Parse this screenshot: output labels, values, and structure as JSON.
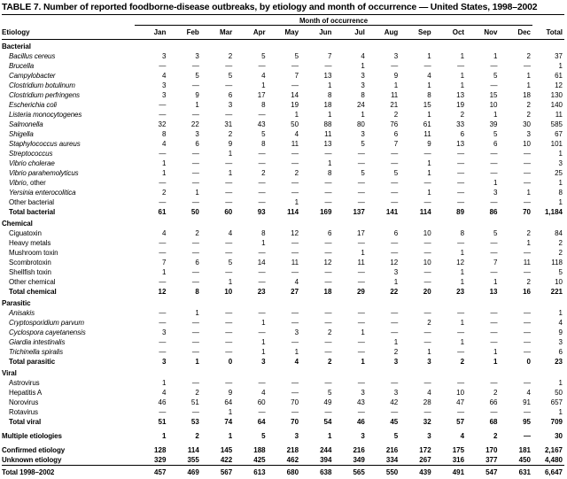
{
  "title": "TABLE 7. Number of reported foodborne-disease outbreaks, by etiology and month of occurrence — United States, 1998–2002",
  "table": {
    "group_header": "Month of occurrence",
    "etiology_header": "Etiology",
    "columns": [
      "Jan",
      "Feb",
      "Mar",
      "Apr",
      "May",
      "Jun",
      "Jul",
      "Aug",
      "Sep",
      "Oct",
      "Nov",
      "Dec",
      "Total"
    ],
    "rows": [
      {
        "type": "section",
        "label": "Bacterial"
      },
      {
        "type": "item",
        "italic": true,
        "label": "Bacillus cereus",
        "values": [
          "3",
          "3",
          "2",
          "5",
          "5",
          "7",
          "4",
          "3",
          "1",
          "1",
          "1",
          "2",
          "37"
        ]
      },
      {
        "type": "item",
        "italic": true,
        "label": "Brucella",
        "values": [
          "—",
          "—",
          "—",
          "—",
          "—",
          "—",
          "1",
          "—",
          "—",
          "—",
          "—",
          "—",
          "1"
        ]
      },
      {
        "type": "item",
        "italic": true,
        "label": "Campylobacter",
        "values": [
          "4",
          "5",
          "5",
          "4",
          "7",
          "13",
          "3",
          "9",
          "4",
          "1",
          "5",
          "1",
          "61"
        ]
      },
      {
        "type": "item",
        "italic": true,
        "label": "Clostridium botulinum",
        "values": [
          "3",
          "—",
          "—",
          "1",
          "—",
          "1",
          "3",
          "1",
          "1",
          "1",
          "—",
          "1",
          "12"
        ]
      },
      {
        "type": "item",
        "italic": true,
        "label": "Clostridium perfringens",
        "values": [
          "3",
          "9",
          "6",
          "17",
          "14",
          "8",
          "8",
          "11",
          "8",
          "13",
          "15",
          "18",
          "130"
        ]
      },
      {
        "type": "item",
        "italic": true,
        "label": "Escherichia coli",
        "values": [
          "—",
          "1",
          "3",
          "8",
          "19",
          "18",
          "24",
          "21",
          "15",
          "19",
          "10",
          "2",
          "140"
        ]
      },
      {
        "type": "item",
        "italic": true,
        "label": "Listeria monocytogenes",
        "values": [
          "—",
          "—",
          "—",
          "—",
          "1",
          "1",
          "1",
          "2",
          "1",
          "2",
          "1",
          "2",
          "11"
        ]
      },
      {
        "type": "item",
        "italic": true,
        "label": "Salmonella",
        "values": [
          "32",
          "22",
          "31",
          "43",
          "50",
          "88",
          "80",
          "76",
          "61",
          "33",
          "39",
          "30",
          "585"
        ]
      },
      {
        "type": "item",
        "italic": true,
        "label": "Shigella",
        "values": [
          "8",
          "3",
          "2",
          "5",
          "4",
          "11",
          "3",
          "6",
          "11",
          "6",
          "5",
          "3",
          "67"
        ]
      },
      {
        "type": "item",
        "italic": true,
        "label": "Staphylococcus aureus",
        "values": [
          "4",
          "6",
          "9",
          "8",
          "11",
          "13",
          "5",
          "7",
          "9",
          "13",
          "6",
          "10",
          "101"
        ]
      },
      {
        "type": "item",
        "italic": true,
        "label": "Streptococcus",
        "values": [
          "—",
          "—",
          "1",
          "—",
          "—",
          "—",
          "—",
          "—",
          "—",
          "—",
          "—",
          "—",
          "1"
        ]
      },
      {
        "type": "item",
        "italic": true,
        "label": "Vibrio cholerae",
        "values": [
          "1",
          "—",
          "—",
          "—",
          "—",
          "1",
          "—",
          "—",
          "1",
          "—",
          "—",
          "—",
          "3"
        ]
      },
      {
        "type": "item",
        "italic": true,
        "label": "Vibrio parahemolyticus",
        "values": [
          "1",
          "—",
          "1",
          "2",
          "2",
          "8",
          "5",
          "5",
          "1",
          "—",
          "—",
          "—",
          "25"
        ]
      },
      {
        "type": "item",
        "italic": true,
        "label": "Vibrio",
        "suffix": ", other",
        "values": [
          "—",
          "—",
          "—",
          "—",
          "—",
          "—",
          "—",
          "—",
          "—",
          "—",
          "1",
          "—",
          "1"
        ]
      },
      {
        "type": "item",
        "italic": true,
        "label": "Yersinia enterocolitica",
        "values": [
          "2",
          "1",
          "—",
          "—",
          "—",
          "—",
          "—",
          "—",
          "1",
          "—",
          "3",
          "1",
          "8"
        ]
      },
      {
        "type": "item",
        "italic": false,
        "label": "Other bacterial",
        "values": [
          "—",
          "—",
          "—",
          "—",
          "1",
          "—",
          "—",
          "—",
          "—",
          "—",
          "—",
          "—",
          "1"
        ]
      },
      {
        "type": "total",
        "label": "Total bacterial",
        "values": [
          "61",
          "50",
          "60",
          "93",
          "114",
          "169",
          "137",
          "141",
          "114",
          "89",
          "86",
          "70",
          "1,184"
        ]
      },
      {
        "type": "section",
        "gap": true,
        "label": "Chemical"
      },
      {
        "type": "item",
        "italic": false,
        "label": "Ciguatoxin",
        "values": [
          "4",
          "2",
          "4",
          "8",
          "12",
          "6",
          "17",
          "6",
          "10",
          "8",
          "5",
          "2",
          "84"
        ]
      },
      {
        "type": "item",
        "italic": false,
        "label": "Heavy metals",
        "values": [
          "—",
          "—",
          "—",
          "1",
          "—",
          "—",
          "—",
          "—",
          "—",
          "—",
          "—",
          "1",
          "2"
        ]
      },
      {
        "type": "item",
        "italic": false,
        "label": "Mushroom toxin",
        "values": [
          "—",
          "—",
          "—",
          "—",
          "—",
          "—",
          "1",
          "—",
          "—",
          "1",
          "—",
          "—",
          "2"
        ]
      },
      {
        "type": "item",
        "italic": false,
        "label": "Scombrotoxin",
        "values": [
          "7",
          "6",
          "5",
          "14",
          "11",
          "12",
          "11",
          "12",
          "10",
          "12",
          "7",
          "11",
          "118"
        ]
      },
      {
        "type": "item",
        "italic": false,
        "label": "Shellfish toxin",
        "values": [
          "1",
          "—",
          "—",
          "—",
          "—",
          "—",
          "—",
          "3",
          "—",
          "1",
          "—",
          "—",
          "5"
        ]
      },
      {
        "type": "item",
        "italic": false,
        "label": "Other chemical",
        "values": [
          "—",
          "—",
          "1",
          "—",
          "4",
          "—",
          "—",
          "1",
          "—",
          "1",
          "1",
          "2",
          "10"
        ]
      },
      {
        "type": "total",
        "label": "Total chemical",
        "values": [
          "12",
          "8",
          "10",
          "23",
          "27",
          "18",
          "29",
          "22",
          "20",
          "23",
          "13",
          "16",
          "221"
        ]
      },
      {
        "type": "section",
        "gap": true,
        "label": "Parasitic"
      },
      {
        "type": "item",
        "italic": true,
        "label": "Anisakis",
        "values": [
          "—",
          "1",
          "—",
          "—",
          "—",
          "—",
          "—",
          "—",
          "—",
          "—",
          "—",
          "—",
          "1"
        ]
      },
      {
        "type": "item",
        "italic": true,
        "label": "Cryptosporidium parvum",
        "values": [
          "—",
          "—",
          "—",
          "1",
          "—",
          "—",
          "—",
          "—",
          "2",
          "1",
          "—",
          "—",
          "4"
        ]
      },
      {
        "type": "item",
        "italic": true,
        "label": "Cyclospora cayetanensis",
        "values": [
          "3",
          "—",
          "—",
          "—",
          "3",
          "2",
          "1",
          "—",
          "—",
          "—",
          "—",
          "—",
          "9"
        ]
      },
      {
        "type": "item",
        "italic": true,
        "label": "Giardia intestinalis",
        "values": [
          "—",
          "—",
          "—",
          "1",
          "—",
          "—",
          "—",
          "1",
          "—",
          "1",
          "—",
          "—",
          "3"
        ]
      },
      {
        "type": "item",
        "italic": true,
        "label": "Trichinella spiralis",
        "values": [
          "—",
          "—",
          "—",
          "1",
          "1",
          "—",
          "—",
          "2",
          "1",
          "—",
          "1",
          "—",
          "6"
        ]
      },
      {
        "type": "total",
        "label": "Total parasitic",
        "values": [
          "3",
          "1",
          "0",
          "3",
          "4",
          "2",
          "1",
          "3",
          "3",
          "2",
          "1",
          "0",
          "23"
        ]
      },
      {
        "type": "section",
        "gap": true,
        "label": "Viral"
      },
      {
        "type": "item",
        "italic": false,
        "label": "Astrovirus",
        "values": [
          "1",
          "—",
          "—",
          "—",
          "—",
          "—",
          "—",
          "—",
          "—",
          "—",
          "—",
          "—",
          "1"
        ]
      },
      {
        "type": "item",
        "italic": false,
        "label": "Hepatitis A",
        "values": [
          "4",
          "2",
          "9",
          "4",
          "—",
          "5",
          "3",
          "3",
          "4",
          "10",
          "2",
          "4",
          "50"
        ]
      },
      {
        "type": "item",
        "italic": false,
        "label": "Norovirus",
        "values": [
          "46",
          "51",
          "64",
          "60",
          "70",
          "49",
          "43",
          "42",
          "28",
          "47",
          "66",
          "91",
          "657"
        ]
      },
      {
        "type": "item",
        "italic": false,
        "label": "Rotavirus",
        "values": [
          "—",
          "—",
          "1",
          "—",
          "—",
          "—",
          "—",
          "—",
          "—",
          "—",
          "—",
          "—",
          "1"
        ]
      },
      {
        "type": "total",
        "label": "Total viral",
        "values": [
          "51",
          "53",
          "74",
          "64",
          "70",
          "54",
          "46",
          "45",
          "32",
          "57",
          "68",
          "95",
          "709"
        ]
      },
      {
        "type": "footer",
        "gap": true,
        "label": "Multiple etiologies",
        "values": [
          "1",
          "2",
          "1",
          "5",
          "3",
          "1",
          "3",
          "5",
          "3",
          "4",
          "2",
          "—",
          "30"
        ]
      },
      {
        "type": "footer",
        "gap": true,
        "label": "Confirmed etiology",
        "values": [
          "128",
          "114",
          "145",
          "188",
          "218",
          "244",
          "216",
          "216",
          "172",
          "175",
          "170",
          "181",
          "2,167"
        ]
      },
      {
        "type": "footer",
        "label": "Unknown etiology",
        "values": [
          "329",
          "355",
          "422",
          "425",
          "462",
          "394",
          "349",
          "334",
          "267",
          "316",
          "377",
          "450",
          "4,480"
        ]
      },
      {
        "type": "grand",
        "gap": true,
        "label": "Total 1998–2002",
        "values": [
          "457",
          "469",
          "567",
          "613",
          "680",
          "638",
          "565",
          "550",
          "439",
          "491",
          "547",
          "631",
          "6,647"
        ]
      }
    ]
  }
}
